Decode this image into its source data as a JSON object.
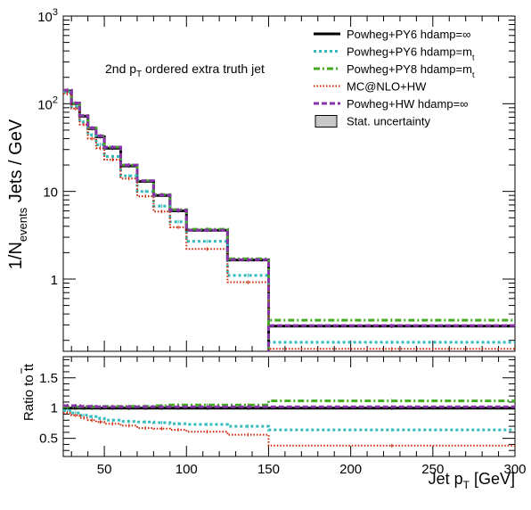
{
  "chart_data": [
    {
      "type": "line",
      "panel": "main",
      "ylabel_main": "1/N",
      "ylabel_sub": "events",
      "ylabel_tail": " Jets / GeV",
      "yscale": "log",
      "ylim": [
        0.15,
        1000
      ],
      "xlim": [
        25,
        300
      ],
      "y_tick_labels": [
        {
          "value": 1000,
          "base": "10",
          "exp": "3"
        },
        {
          "value": 100,
          "base": "10",
          "exp": "2"
        },
        {
          "value": 10,
          "base": "10",
          "exp": ""
        },
        {
          "value": 1,
          "base": "1",
          "exp": ""
        }
      ],
      "annotation": {
        "pre": "2nd p",
        "sub": "T",
        "post": " ordered extra truth jet"
      },
      "bin_edges": [
        25,
        30,
        35,
        40,
        45,
        50,
        60,
        70,
        80,
        90,
        100,
        125,
        150,
        300
      ],
      "series": [
        {
          "name": "Powheg+PY6 hdamp=∞",
          "color": "#000000",
          "style": "solid",
          "values": [
            140,
            100,
            72,
            52,
            42,
            31,
            19.5,
            13,
            9,
            6,
            3.6,
            1.65,
            0.29
          ]
        },
        {
          "name": "Powheg+PY6 hdamp=m",
          "name_sub": "t",
          "color": "#33bbbb",
          "style": "dotted",
          "values": [
            135,
            92,
            62,
            44,
            34,
            25,
            15,
            10,
            6.8,
            4.5,
            2.7,
            1.1,
            0.19
          ]
        },
        {
          "name": "Powheg+PY8 hdamp=m",
          "name_sub": "t",
          "color": "#44aa22",
          "style": "dashdot",
          "values": [
            142,
            101,
            73,
            53,
            43,
            32,
            20,
            13.2,
            9.2,
            6.2,
            3.7,
            1.7,
            0.34
          ]
        },
        {
          "name": "MC@NLO+HW",
          "color": "#cc2200",
          "style": "finedot",
          "values": [
            130,
            88,
            58,
            40,
            31,
            23,
            14,
            8.8,
            5.9,
            3.9,
            2.2,
            0.92,
            0.16
          ]
        },
        {
          "name": "Powheg+HW hdamp=∞",
          "color": "#8833aa",
          "style": "dashed",
          "values": [
            143,
            102,
            73,
            53,
            43,
            32,
            20,
            13.2,
            9.1,
            6.1,
            3.6,
            1.66,
            0.295
          ]
        }
      ],
      "stat_uncertainty_label": "Stat. uncertainty"
    },
    {
      "type": "line",
      "panel": "ratio",
      "ylabel_pre": "Ratio to t",
      "ylabel_bar": "t",
      "ylim": [
        0.2,
        1.85
      ],
      "xlim": [
        25,
        300
      ],
      "xlabel_pre": "Jet p",
      "xlabel_sub": "T",
      "xlabel_post": " [GeV]",
      "y_ticks": [
        "0.5",
        "1",
        "1.5"
      ],
      "x_ticks": [
        "50",
        "100",
        "150",
        "200",
        "250",
        "300"
      ],
      "bin_edges": [
        25,
        30,
        35,
        40,
        45,
        50,
        60,
        70,
        80,
        90,
        100,
        125,
        150,
        300
      ],
      "series": [
        {
          "name": "Powheg+PY6 hdamp=∞",
          "color": "#000000",
          "style": "solid",
          "values": [
            1.0,
            1.0,
            1.0,
            1.0,
            1.0,
            1.0,
            1.0,
            1.0,
            1.0,
            1.0,
            1.0,
            1.0,
            1.0
          ]
        },
        {
          "name": "Powheg+PY6 hdamp=m",
          "color": "#33bbbb",
          "style": "dotted",
          "values": [
            0.96,
            0.92,
            0.88,
            0.86,
            0.83,
            0.8,
            0.78,
            0.77,
            0.76,
            0.74,
            0.73,
            0.7,
            0.64
          ]
        },
        {
          "name": "Powheg+PY8 hdamp=m",
          "color": "#44aa22",
          "style": "dashdot",
          "values": [
            1.02,
            1.02,
            1.02,
            1.02,
            1.02,
            1.03,
            1.03,
            1.03,
            1.04,
            1.05,
            1.05,
            1.05,
            1.12
          ]
        },
        {
          "name": "MC@NLO+HW",
          "color": "#cc2200",
          "style": "finedot",
          "values": [
            0.92,
            0.88,
            0.84,
            0.8,
            0.77,
            0.74,
            0.71,
            0.67,
            0.66,
            0.64,
            0.61,
            0.56,
            0.38
          ]
        },
        {
          "name": "Powheg+HW hdamp=∞",
          "color": "#8833aa",
          "style": "dashed",
          "values": [
            1.04,
            1.04,
            1.03,
            1.03,
            1.02,
            1.02,
            1.02,
            1.02,
            1.02,
            1.02,
            1.02,
            1.02,
            1.02
          ]
        }
      ]
    }
  ]
}
